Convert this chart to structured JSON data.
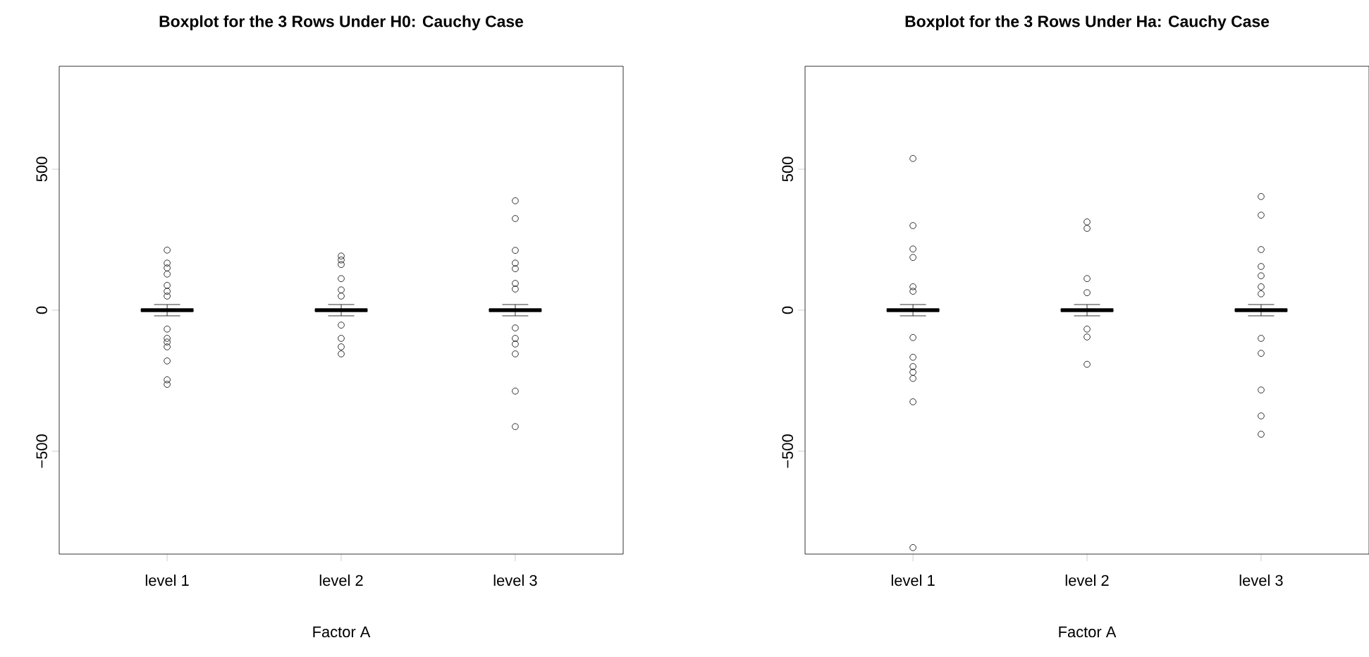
{
  "chart_data": [
    {
      "type": "box",
      "title": "Boxplot for the 3 Rows Under H0: Cauchy Case",
      "xlabel": "Factor A",
      "categories": [
        "level 1",
        "level 2",
        "level 3"
      ],
      "color": "#000000",
      "marker": "circle",
      "grid": false,
      "boxes": [
        {
          "low": -20,
          "q1": -5,
          "median": 0,
          "q3": 5,
          "high": 20,
          "outliers": [
            213,
            167,
            150,
            128,
            88,
            67,
            50,
            -67,
            -100,
            -113,
            -130,
            -180,
            -247,
            -263
          ]
        },
        {
          "low": -20,
          "q1": -5,
          "median": 0,
          "q3": 5,
          "high": 20,
          "outliers": [
            192,
            178,
            162,
            112,
            72,
            50,
            -53,
            -100,
            -130,
            -155
          ]
        },
        {
          "low": -20,
          "q1": -5,
          "median": 0,
          "q3": 5,
          "high": 20,
          "outliers": [
            388,
            325,
            212,
            167,
            147,
            95,
            75,
            -63,
            -100,
            -120,
            -155,
            -287,
            -413
          ]
        }
      ],
      "ylim": [
        -865,
        865
      ],
      "yticks": [
        {
          "value": -500,
          "label": "−500"
        },
        0,
        500
      ]
    },
    {
      "type": "box",
      "title": "Boxplot for the 3 Rows Under Ha: Cauchy Case",
      "xlabel": "Factor A",
      "categories": [
        "level 1",
        "level 2",
        "level 3"
      ],
      "color": "#000000",
      "marker": "circle",
      "grid": false,
      "boxes": [
        {
          "low": -20,
          "q1": -5,
          "median": 0,
          "q3": 5,
          "high": 20,
          "outliers": [
            538,
            300,
            217,
            187,
            83,
            67,
            -97,
            -167,
            -200,
            -220,
            -242,
            -325,
            -842
          ]
        },
        {
          "low": -20,
          "q1": -5,
          "median": 0,
          "q3": 5,
          "high": 20,
          "outliers": [
            313,
            290,
            112,
            62,
            -67,
            -95,
            -192
          ]
        },
        {
          "low": -20,
          "q1": -5,
          "median": 0,
          "q3": 5,
          "high": 20,
          "outliers": [
            403,
            337,
            215,
            155,
            122,
            83,
            58,
            -100,
            -153,
            -283,
            -375,
            -440
          ]
        }
      ],
      "ylim": [
        -865,
        865
      ],
      "yticks": [
        {
          "value": -500,
          "label": "−500"
        },
        0,
        500
      ]
    }
  ]
}
